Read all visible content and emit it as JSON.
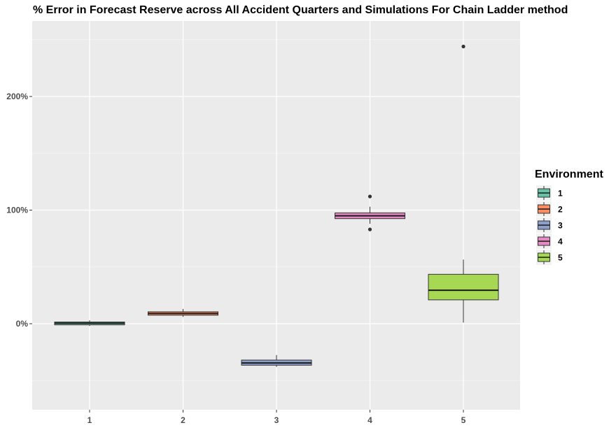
{
  "chart_data": {
    "type": "boxplot",
    "title": "% Error in Forecast Reserve across All Accident Quarters and Simulations For Chain Ladder method",
    "xlabel": "",
    "ylabel": "",
    "categories": [
      "1",
      "2",
      "3",
      "4",
      "5"
    ],
    "ylim": [
      -0.75,
      2.5
    ],
    "y_ticks": [
      0,
      1,
      2
    ],
    "y_tick_labels": [
      "0%",
      "100%",
      "200%"
    ],
    "grid": true,
    "legend": {
      "title": "Environment",
      "position": "right",
      "entries": [
        "1",
        "2",
        "3",
        "4",
        "5"
      ]
    },
    "colors": [
      "#66c2a5",
      "#fc8d62",
      "#8da0cb",
      "#e78ac3",
      "#a6d854"
    ],
    "boxes": [
      {
        "category": "1",
        "min": -0.02,
        "q1": -0.01,
        "median": 0.005,
        "q3": 0.015,
        "max": 0.03,
        "outliers": []
      },
      {
        "category": "2",
        "min": 0.06,
        "q1": 0.075,
        "median": 0.09,
        "q3": 0.105,
        "max": 0.13,
        "outliers": []
      },
      {
        "category": "3",
        "min": -0.38,
        "q1": -0.365,
        "median": -0.345,
        "q3": -0.32,
        "max": -0.275,
        "outliers": []
      },
      {
        "category": "4",
        "min": 0.88,
        "q1": 0.925,
        "median": 0.95,
        "q3": 0.975,
        "max": 1.03,
        "outliers": [
          0.83,
          1.12
        ]
      },
      {
        "category": "5",
        "min": 0.01,
        "q1": 0.21,
        "median": 0.295,
        "q3": 0.435,
        "max": 0.565,
        "outliers": [
          2.44
        ]
      }
    ]
  }
}
